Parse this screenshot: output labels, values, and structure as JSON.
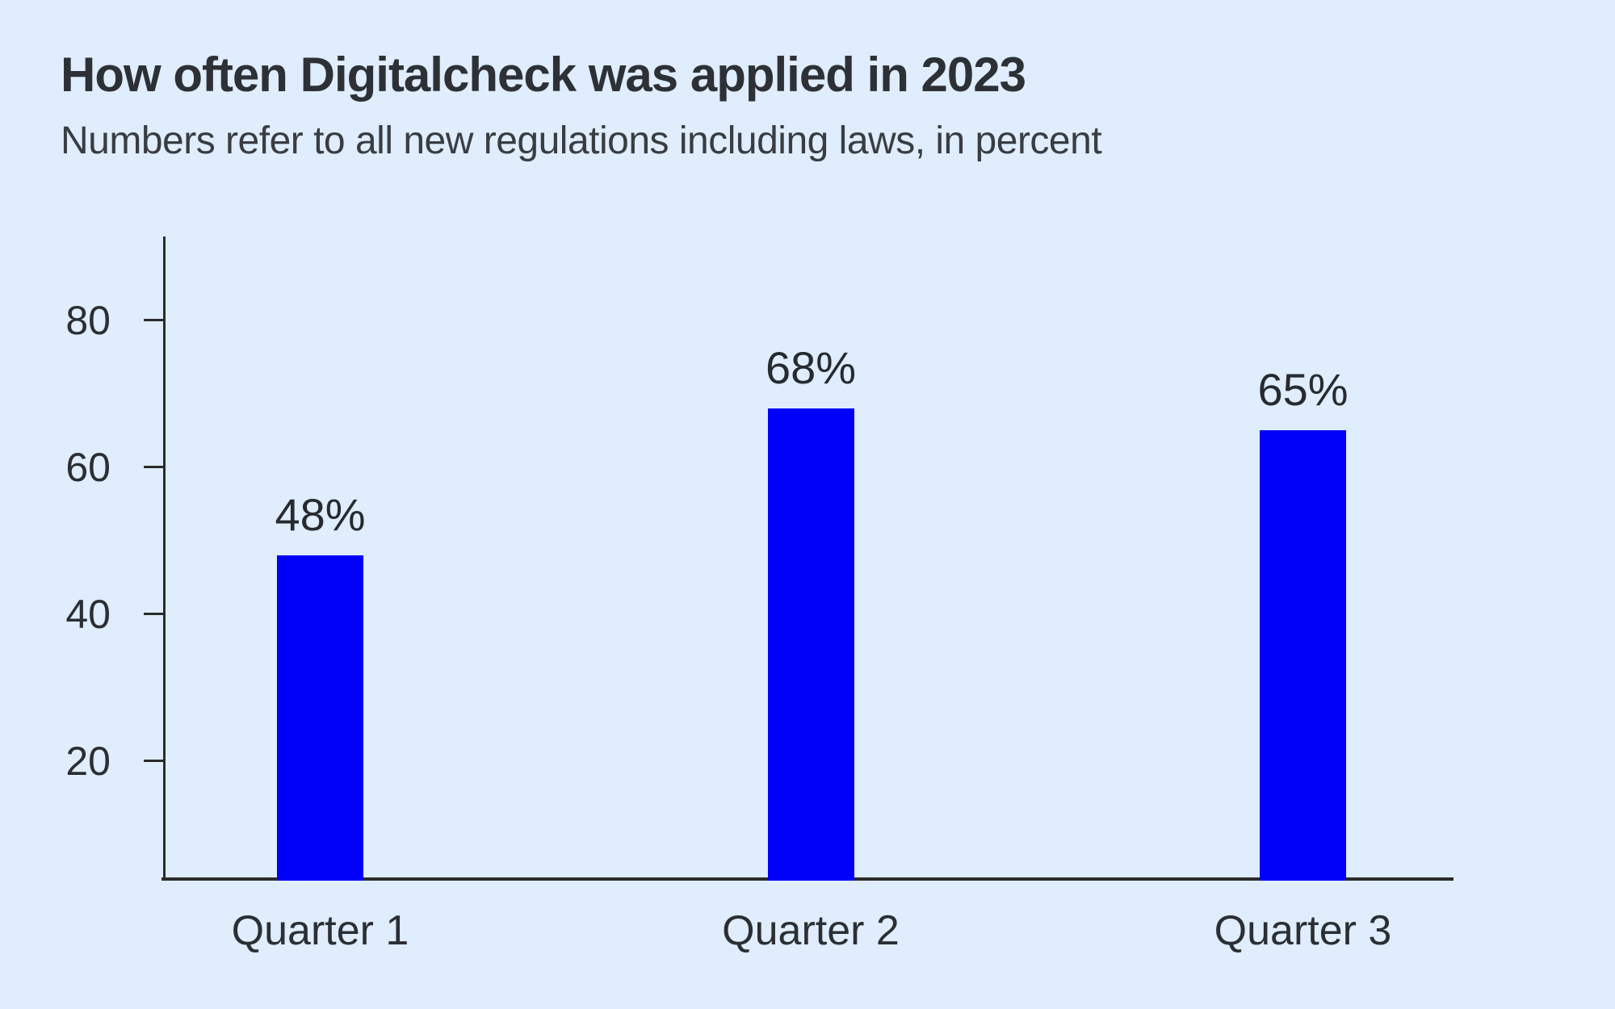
{
  "header": {
    "title": "How often Digitalcheck was applied in 2023",
    "subtitle": "Numbers refer to all new regulations including laws, in percent"
  },
  "chart_data": {
    "type": "bar",
    "title": "How often Digitalcheck was applied in 2023",
    "subtitle": "Numbers refer to all new regulations including laws, in percent",
    "categories": [
      "Quarter 1",
      "Quarter 2",
      "Quarter 3"
    ],
    "values": [
      48,
      68,
      65
    ],
    "value_labels": [
      "48%",
      "68%",
      "65%"
    ],
    "unit": "percent",
    "ylabel": "",
    "xlabel": "",
    "yticks": [
      20,
      40,
      60,
      80
    ],
    "ylim": [
      0,
      91
    ],
    "grid": false,
    "legend": false,
    "colors": {
      "bar": "#0000fa",
      "background": "#dfedfc",
      "axis": "#2b2b2b",
      "text": "#2d3136"
    }
  }
}
